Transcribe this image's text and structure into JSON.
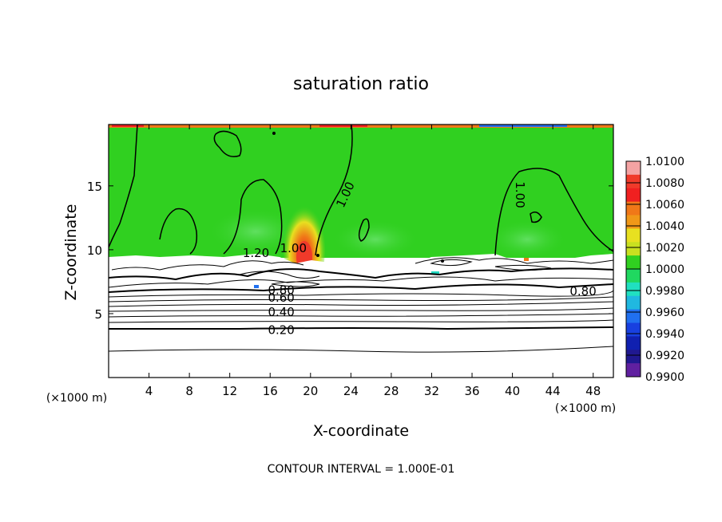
{
  "chart_data": {
    "type": "heatmap",
    "title": "saturation ratio",
    "xlabel": "X-coordinate",
    "ylabel": "Z-coordinate",
    "x_unit_left": "(×1000 m)",
    "x_unit_right": "(×1000 m)",
    "xlim": [
      0,
      50
    ],
    "ylim": [
      0,
      19.8
    ],
    "x_ticks": [
      "4",
      "8",
      "12",
      "16",
      "20",
      "24",
      "28",
      "32",
      "36",
      "40",
      "44",
      "48"
    ],
    "x_tick_values": [
      4,
      8,
      12,
      16,
      20,
      24,
      28,
      32,
      36,
      40,
      44,
      48
    ],
    "y_ticks": [
      "5",
      "10",
      "15"
    ],
    "y_tick_values": [
      5,
      10,
      15
    ],
    "footer": "CONTOUR INTERVAL = 1.000E-01",
    "colorbar": {
      "labels": [
        "1.0100",
        "1.0080",
        "1.0060",
        "1.0040",
        "1.0020",
        "1.0000",
        "0.9980",
        "0.9960",
        "0.9940",
        "0.9920",
        "0.9900"
      ],
      "colors": [
        "#f4a3a3",
        "#f03a2a",
        "#f02020",
        "#f07818",
        "#f09818",
        "#e8e020",
        "#c8e020",
        "#30d020",
        "#20d860",
        "#20e0c0",
        "#20b8e0",
        "#2070f0",
        "#1840e0",
        "#1020b0",
        "#201890",
        "#6020a0"
      ]
    },
    "contour_labels": [
      {
        "text": "1.00",
        "x": 23.5,
        "z": 14.3,
        "rot": -65
      },
      {
        "text": "1.00",
        "x": 40.7,
        "z": 14.3,
        "rot": 90
      },
      {
        "text": "1.20",
        "x": 14.6,
        "z": 9.7,
        "rot": 0
      },
      {
        "text": "1.00",
        "x": 18.3,
        "z": 10.1,
        "rot": 0
      },
      {
        "text": "0.80",
        "x": 47.0,
        "z": 6.7,
        "rot": 0
      },
      {
        "text": "0.80",
        "x": 17.1,
        "z": 6.8,
        "rot": 0
      },
      {
        "text": "0.60",
        "x": 17.1,
        "z": 6.2,
        "rot": 0
      },
      {
        "text": "0.40",
        "x": 17.1,
        "z": 5.1,
        "rot": 0
      },
      {
        "text": "0.20",
        "x": 17.1,
        "z": 3.7,
        "rot": 0
      }
    ],
    "regions": {
      "saturated_layer_z": [
        9.7,
        19.4
      ],
      "ice_supersaturation_peak_x": 19.5,
      "peak_value": 1.01
    }
  }
}
